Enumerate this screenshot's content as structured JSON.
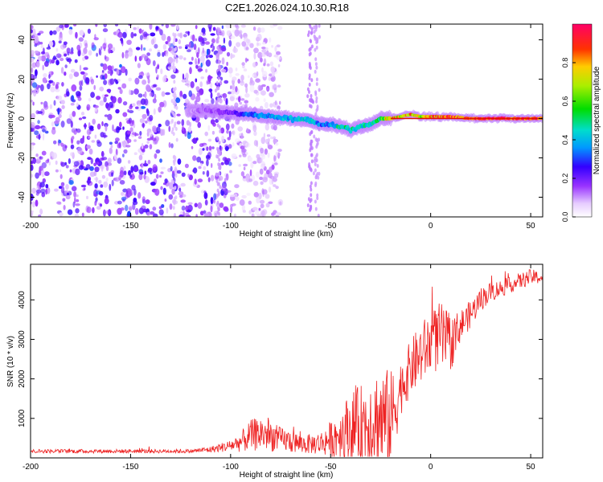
{
  "figure_title": "C2E1.2026.024.10.30.R18",
  "chart_data": [
    {
      "type": "heatmap",
      "title": "C2E1.2026.024.10.30.R18",
      "xlabel": "Height of straight line (km)",
      "ylabel": "Frequency (Hz)",
      "xlim": [
        -200,
        56
      ],
      "ylim": [
        -50,
        48
      ],
      "xticks": [
        -200,
        -150,
        -100,
        -50,
        0,
        50
      ],
      "yticks": [
        -40,
        -20,
        0,
        20,
        40
      ],
      "colorbar": {
        "label": "Normalized spectral amplitude",
        "range": [
          0.0,
          1.0
        ],
        "ticks": [
          0.0,
          0.2,
          0.4,
          0.6,
          0.8
        ],
        "colormap": "white-purple-blue-cyan-green-yellow-red-magenta"
      },
      "ridge": {
        "description": "dominant frequency trace vs height",
        "x": [
          -120,
          -110,
          -100,
          -90,
          -80,
          -70,
          -60,
          -55,
          -50,
          -45,
          -40,
          -35,
          -30,
          -25,
          -20,
          -15,
          -10,
          -5,
          0,
          10,
          20,
          30,
          40,
          50,
          56
        ],
        "y": [
          4,
          4,
          3,
          2,
          1,
          0,
          -1,
          -3,
          -3,
          -4,
          -6,
          -4,
          -3,
          0,
          0,
          1,
          2,
          1,
          1,
          1,
          0,
          0,
          0,
          0,
          0
        ],
        "amplitude": [
          0.12,
          0.15,
          0.2,
          0.35,
          0.4,
          0.42,
          0.45,
          0.35,
          0.4,
          0.5,
          0.5,
          0.45,
          0.5,
          0.55,
          0.9,
          0.75,
          0.85,
          0.7,
          0.85,
          0.95,
          0.98,
          1.0,
          1.0,
          1.0,
          1.0
        ]
      },
      "noise_region": {
        "x_range": [
          -200,
          -100
        ],
        "amplitude_range": [
          0.05,
          0.25
        ]
      }
    },
    {
      "type": "line",
      "xlabel": "Height of straight line (km)",
      "ylabel": "SNR (10 * v/v)",
      "xlim": [
        -200,
        56
      ],
      "ylim": [
        0,
        4900
      ],
      "xticks": [
        -200,
        -150,
        -100,
        -50,
        0,
        50
      ],
      "yticks": [
        1000,
        2000,
        3000,
        4000
      ],
      "series": [
        {
          "name": "SNR",
          "color": "#ee2222",
          "x": [
            -200,
            -180,
            -160,
            -140,
            -120,
            -110,
            -100,
            -95,
            -90,
            -85,
            -80,
            -75,
            -70,
            -65,
            -60,
            -55,
            -50,
            -45,
            -40,
            -35,
            -30,
            -25,
            -20,
            -15,
            -10,
            -5,
            0,
            5,
            10,
            15,
            20,
            25,
            30,
            40,
            50,
            56
          ],
          "base": [
            150,
            150,
            150,
            150,
            150,
            180,
            250,
            300,
            400,
            450,
            400,
            350,
            300,
            250,
            250,
            250,
            300,
            350,
            400,
            450,
            500,
            400,
            400,
            1500,
            2000,
            2300,
            2600,
            2700,
            2600,
            3200,
            3500,
            3900,
            4100,
            4300,
            4500,
            4500
          ],
          "spread": [
            50,
            50,
            50,
            50,
            50,
            80,
            150,
            250,
            400,
            450,
            400,
            300,
            300,
            250,
            250,
            300,
            450,
            700,
            900,
            1000,
            1200,
            1400,
            1300,
            700,
            700,
            800,
            800,
            900,
            700,
            400,
            350,
            300,
            250,
            200,
            200,
            150
          ]
        }
      ]
    }
  ]
}
